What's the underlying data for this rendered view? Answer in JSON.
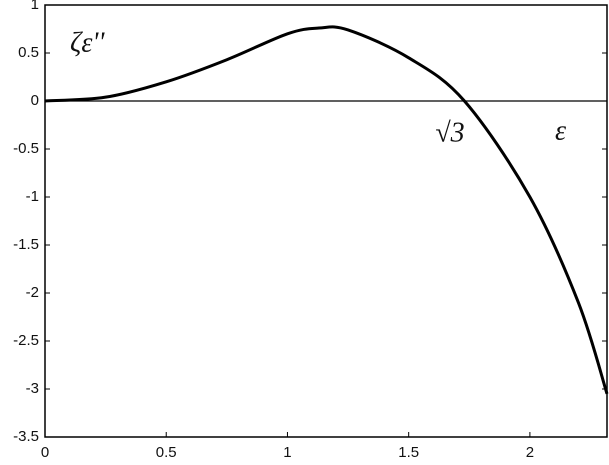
{
  "chart_data": {
    "type": "line",
    "y_label": "ζε''",
    "x_label": "ε",
    "annotations": [
      "√3"
    ],
    "x": [
      0,
      0.25,
      0.5,
      0.75,
      1,
      1.13,
      1.25,
      1.5,
      1.73,
      2,
      2.2,
      2.318
    ],
    "series": [
      {
        "color": "#000000",
        "values": [
          0,
          0.04,
          0.2,
          0.43,
          0.7,
          0.76,
          0.74,
          0.45,
          0,
          -1,
          -2.1,
          -3.05
        ]
      }
    ],
    "xlim": [
      0,
      2.318
    ],
    "ylim": [
      -3.5,
      1
    ],
    "xticks": [
      0,
      0.5,
      1,
      1.5,
      2
    ],
    "yticks": [
      1,
      0.5,
      0,
      -0.5,
      -1,
      -1.5,
      -2,
      -2.5,
      -3,
      -3.5
    ],
    "zero_line": true
  }
}
